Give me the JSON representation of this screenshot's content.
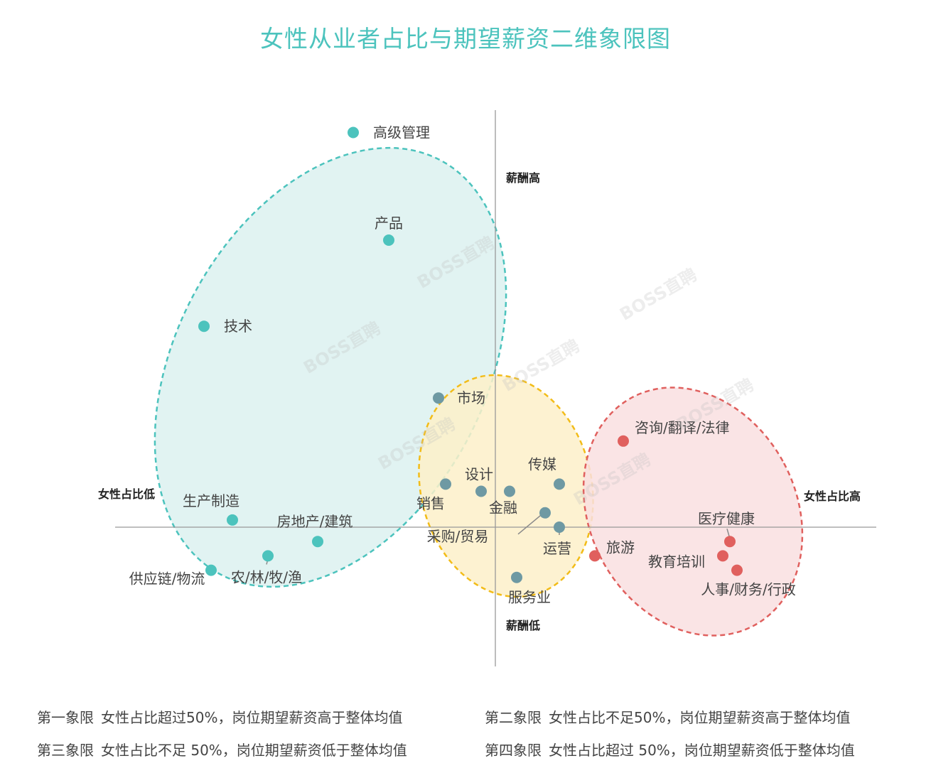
{
  "chart_data": {
    "type": "scatter",
    "title": "女性从业者占比与期望薪资二维象限图",
    "axis_labels": {
      "y_top": "薪酬高",
      "y_bottom": "薪酬低",
      "x_left": "女性占比低",
      "x_right": "女性占比高"
    },
    "x_meaning": "女性占比",
    "y_meaning": "期望薪资",
    "points": [
      {
        "label": "高级管理",
        "group": "teal",
        "x": -2.0,
        "y": 5.5
      },
      {
        "label": "产品",
        "group": "teal",
        "x": -1.5,
        "y": 4.0
      },
      {
        "label": "技术",
        "group": "teal",
        "x": -4.1,
        "y": 2.8
      },
      {
        "label": "生产制造",
        "group": "teal",
        "x": -3.7,
        "y": 0.1
      },
      {
        "label": "房地产/建筑",
        "group": "teal",
        "x": -2.5,
        "y": -0.2
      },
      {
        "label": "农/林/牧/渔",
        "group": "teal",
        "x": -3.2,
        "y": -0.4
      },
      {
        "label": "供应链/物流",
        "group": "teal",
        "x": -4.0,
        "y": -0.6
      },
      {
        "label": "市场",
        "group": "slate",
        "x": -0.8,
        "y": 1.8
      },
      {
        "label": "销售",
        "group": "slate",
        "x": -0.7,
        "y": 0.6
      },
      {
        "label": "设计",
        "group": "slate",
        "x": -0.2,
        "y": 0.5
      },
      {
        "label": "金融",
        "group": "slate",
        "x": 0.2,
        "y": 0.5
      },
      {
        "label": "传媒",
        "group": "slate",
        "x": 0.9,
        "y": 0.6
      },
      {
        "label": "采购/贸易",
        "group": "slate",
        "x": 0.7,
        "y": 0.2
      },
      {
        "label": "运营",
        "group": "slate",
        "x": 0.9,
        "y": 0.0
      },
      {
        "label": "服务业",
        "group": "slate",
        "x": 0.3,
        "y": -0.7
      },
      {
        "label": "旅游",
        "group": "red",
        "x": 1.4,
        "y": -0.4
      },
      {
        "label": "咨询/翻译/法律",
        "group": "red",
        "x": 1.8,
        "y": 1.2
      },
      {
        "label": "医疗健康",
        "group": "red",
        "x": 3.3,
        "y": -0.2
      },
      {
        "label": "教育培训",
        "group": "red",
        "x": 3.2,
        "y": -0.4
      },
      {
        "label": "人事/财务/行政",
        "group": "red",
        "x": 3.4,
        "y": -0.6
      }
    ],
    "group_colors": {
      "teal": "#4cc3bd",
      "slate": "#6e99a3",
      "red": "#e0605e"
    },
    "cluster_fills": {
      "teal": "#dcf1f0",
      "yellow": "#fdf0c9",
      "red": "#f9dfe0"
    },
    "cluster_strokes": {
      "teal": "#4cc3bd",
      "yellow": "#f2bc18",
      "red": "#e0605e"
    },
    "watermark": "BOSS直聘"
  },
  "legend": [
    {
      "quadrant": "第一象限",
      "text": "女性占比超过50%，岗位期望薪资高于整体均值"
    },
    {
      "quadrant": "第二象限",
      "text": "女性占比不足50%，岗位期望薪资高于整体均值"
    },
    {
      "quadrant": "第三象限",
      "text": "女性占比不足 50%，岗位期望薪资低于整体均值"
    },
    {
      "quadrant": "第四象限",
      "text": "女性占比超过 50%，岗位期望薪资低于整体均值"
    }
  ]
}
